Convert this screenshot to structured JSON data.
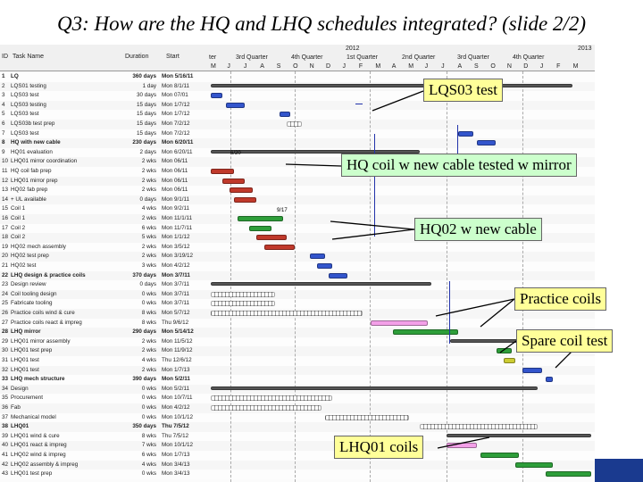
{
  "title": "Q3: How are the HQ and LHQ schedules integrated? (slide 2/2)",
  "colors": {
    "summary": "#555555",
    "blue": "#3355cc",
    "red": "#c0392b",
    "green": "#2e9e3a",
    "pink": "#f3a0e8",
    "yellow": "#cccc33",
    "callout_yellow": "#ffff99",
    "callout_green": "#ccffcc"
  },
  "header": {
    "id_label": "ID",
    "name_label": "Task Name",
    "dur_label": "Duration",
    "start_label": "Start",
    "years": [
      "2012",
      "2013"
    ],
    "quarters": [
      "ter",
      "3rd Quarter",
      "4th Quarter",
      "1st Quarter",
      "2nd Quarter",
      "3rd Quarter",
      "4th Quarter"
    ],
    "months": [
      "M",
      "J",
      "J",
      "A",
      "S",
      "O",
      "N",
      "D",
      "J",
      "F",
      "M",
      "A",
      "M",
      "J",
      "J",
      "A",
      "S",
      "O",
      "N",
      "D",
      "J",
      "F",
      "M"
    ]
  },
  "tasks": [
    {
      "id": "1",
      "name": "LQ",
      "dur": "360 days",
      "start": "Mon 5/16/11",
      "summary": true
    },
    {
      "id": "2",
      "name": "LQS01 testing",
      "dur": "1 day",
      "start": "Mon 8/1/11"
    },
    {
      "id": "3",
      "name": "LQS03 test",
      "dur": "30 days",
      "start": "Mon 07/01"
    },
    {
      "id": "4",
      "name": "LQS03 testing",
      "dur": "15 days",
      "start": "Mon 1/7/12"
    },
    {
      "id": "5",
      "name": "LQS03 test",
      "dur": "15 days",
      "start": "Mon 1/7/12"
    },
    {
      "id": "6",
      "name": "LQS03b test prep",
      "dur": "15 days",
      "start": "Mon 7/2/12"
    },
    {
      "id": "7",
      "name": "LQS03 test",
      "dur": "15 days",
      "start": "Mon 7/2/12"
    },
    {
      "id": "8",
      "name": "HQ with new cable",
      "dur": "230 days",
      "start": "Mon 6/20/11",
      "summary": true
    },
    {
      "id": "9",
      "name": "HQ01 evaluation",
      "dur": "2 days",
      "start": "Mon 6/20/11"
    },
    {
      "id": "10",
      "name": "LHQ01 mirror coordination",
      "dur": "2 wks",
      "start": "Mon 06/11"
    },
    {
      "id": "11",
      "name": "HQ coil fab prep",
      "dur": "2 wks",
      "start": "Mon 06/11"
    },
    {
      "id": "12",
      "name": "LHQ01 mirror prep",
      "dur": "2 wks",
      "start": "Mon 06/11"
    },
    {
      "id": "13",
      "name": "HQ02 fab prep",
      "dur": "2 wks",
      "start": "Mon 06/11"
    },
    {
      "id": "14",
      "name": "+ UL available",
      "dur": "0 days",
      "start": "Mon 9/1/11"
    },
    {
      "id": "15",
      "name": "Coil 1",
      "dur": "4 wks",
      "start": "Mon 9/2/11"
    },
    {
      "id": "16",
      "name": "Coil 1",
      "dur": "2 wks",
      "start": "Mon 11/1/11"
    },
    {
      "id": "17",
      "name": "Coil 2",
      "dur": "6 wks",
      "start": "Mon 11/7/11"
    },
    {
      "id": "18",
      "name": "Coil 2",
      "dur": "5 wks",
      "start": "Mon 1/1/12"
    },
    {
      "id": "19",
      "name": "HQ02 mech assembly",
      "dur": "2 wks",
      "start": "Mon 3/5/12"
    },
    {
      "id": "20",
      "name": "HQ02 test prep",
      "dur": "2 wks",
      "start": "Mon 3/19/12"
    },
    {
      "id": "21",
      "name": "HQ02 test",
      "dur": "3 wks",
      "start": "Mon 4/2/12"
    },
    {
      "id": "22",
      "name": "LHQ design & practice coils",
      "dur": "370 days",
      "start": "Mon 3/7/11",
      "summary": true
    },
    {
      "id": "23",
      "name": "Design review",
      "dur": "0 days",
      "start": "Mon 3/7/11"
    },
    {
      "id": "24",
      "name": "Coil tooling design",
      "dur": "0 wks",
      "start": "Mon 3/7/11"
    },
    {
      "id": "25",
      "name": "Fabricate tooling",
      "dur": "0 wks",
      "start": "Mon 3/7/11"
    },
    {
      "id": "26",
      "name": "Practice coils wind & cure",
      "dur": "8 wks",
      "start": "Mon 5/7/12"
    },
    {
      "id": "27",
      "name": "Practice coils react & impreg",
      "dur": "8 wks",
      "start": "Thu 9/6/12"
    },
    {
      "id": "28",
      "name": "LHQ mirror",
      "dur": "290 days",
      "start": "Mon 5/14/12",
      "summary": true
    },
    {
      "id": "29",
      "name": "LHQ01 mirror assembly",
      "dur": "2 wks",
      "start": "Mon 11/5/12"
    },
    {
      "id": "30",
      "name": "LHQ01 test prep",
      "dur": "2 wks",
      "start": "Mon 11/9/12"
    },
    {
      "id": "31",
      "name": "LHQ01 test",
      "dur": "4 wks",
      "start": "Thu 12/6/12"
    },
    {
      "id": "32",
      "name": "LHQ01 test",
      "dur": "2 wks",
      "start": "Mon 1/7/13"
    },
    {
      "id": "33",
      "name": "LHQ mech structure",
      "dur": "390 days",
      "start": "Mon 5/2/11",
      "summary": true
    },
    {
      "id": "34",
      "name": "Design",
      "dur": "0 wks",
      "start": "Mon 5/2/11"
    },
    {
      "id": "35",
      "name": "Procurement",
      "dur": "0 wks",
      "start": "Mon 10/7/11"
    },
    {
      "id": "36",
      "name": "Fab",
      "dur": "0 wks",
      "start": "Mon 4/2/12"
    },
    {
      "id": "37",
      "name": "Mechanical model",
      "dur": "0 wks",
      "start": "Mon 10/1/12"
    },
    {
      "id": "38",
      "name": "LHQ01",
      "dur": "350 days",
      "start": "Thu 7/5/12",
      "summary": true
    },
    {
      "id": "39",
      "name": "LHQ01 wind & cure",
      "dur": "8 wks",
      "start": "Thu 7/5/12"
    },
    {
      "id": "40",
      "name": "LHQ01 react & impreg",
      "dur": "7 wks",
      "start": "Mon 10/1/12"
    },
    {
      "id": "41",
      "name": "LHQ02 wind & impreg",
      "dur": "6 wks",
      "start": "Mon 1/7/13"
    },
    {
      "id": "42",
      "name": "LHQ02 assembly & impreg",
      "dur": "4 wks",
      "start": "Mon 3/4/13"
    },
    {
      "id": "43",
      "name": "LHQ01 test prep",
      "dur": "0 wks",
      "start": "Mon 3/4/13"
    }
  ],
  "milestones": [
    "6/20",
    "9/17"
  ],
  "callouts": [
    {
      "text": "LQS03 test",
      "style": "yellow"
    },
    {
      "text": "HQ coil w new cable tested w mirror",
      "style": "green"
    },
    {
      "text": "HQ02 w new cable",
      "style": "green"
    },
    {
      "text": "Practice coils",
      "style": "yellow"
    },
    {
      "text": "Spare coil test",
      "style": "yellow"
    },
    {
      "text": "LHQ01 coils",
      "style": "yellow"
    }
  ],
  "gantt_bars": [
    {
      "row": 1,
      "start": 0.0,
      "end": 0.95,
      "kind": "summary"
    },
    {
      "row": 2,
      "start": 0.0,
      "end": 0.03,
      "kind": "blue"
    },
    {
      "row": 3,
      "start": 0.04,
      "end": 0.09,
      "kind": "blue"
    },
    {
      "row": 4,
      "start": 0.18,
      "end": 0.21,
      "kind": "blue"
    },
    {
      "row": 5,
      "start": 0.2,
      "end": 0.24,
      "kind": "hatched"
    },
    {
      "row": 6,
      "start": 0.65,
      "end": 0.69,
      "kind": "blue"
    },
    {
      "row": 7,
      "start": 0.7,
      "end": 0.75,
      "kind": "blue"
    },
    {
      "row": 8,
      "start": 0.0,
      "end": 0.55,
      "kind": "summary"
    },
    {
      "row": 10,
      "start": 0.0,
      "end": 0.06,
      "kind": "red"
    },
    {
      "row": 11,
      "start": 0.03,
      "end": 0.09,
      "kind": "red"
    },
    {
      "row": 12,
      "start": 0.05,
      "end": 0.11,
      "kind": "red"
    },
    {
      "row": 13,
      "start": 0.06,
      "end": 0.12,
      "kind": "red"
    },
    {
      "row": 15,
      "start": 0.07,
      "end": 0.19,
      "kind": "green"
    },
    {
      "row": 16,
      "start": 0.1,
      "end": 0.16,
      "kind": "green"
    },
    {
      "row": 17,
      "start": 0.12,
      "end": 0.2,
      "kind": "red"
    },
    {
      "row": 18,
      "start": 0.14,
      "end": 0.22,
      "kind": "red"
    },
    {
      "row": 19,
      "start": 0.26,
      "end": 0.3,
      "kind": "blue"
    },
    {
      "row": 20,
      "start": 0.28,
      "end": 0.32,
      "kind": "blue"
    },
    {
      "row": 21,
      "start": 0.31,
      "end": 0.36,
      "kind": "blue"
    },
    {
      "row": 22,
      "start": 0.0,
      "end": 0.58,
      "kind": "summary"
    },
    {
      "row": 23,
      "start": 0.0,
      "end": 0.17,
      "kind": "hatched"
    },
    {
      "row": 24,
      "start": 0.0,
      "end": 0.17,
      "kind": "hatched"
    },
    {
      "row": 25,
      "start": 0.0,
      "end": 0.4,
      "kind": "hatched"
    },
    {
      "row": 26,
      "start": 0.42,
      "end": 0.57,
      "kind": "pink"
    },
    {
      "row": 27,
      "start": 0.48,
      "end": 0.65,
      "kind": "green"
    },
    {
      "row": 28,
      "start": 0.63,
      "end": 0.95,
      "kind": "summary"
    },
    {
      "row": 29,
      "start": 0.75,
      "end": 0.79,
      "kind": "green"
    },
    {
      "row": 30,
      "start": 0.77,
      "end": 0.8,
      "kind": "yellow"
    },
    {
      "row": 31,
      "start": 0.82,
      "end": 0.87,
      "kind": "blue"
    },
    {
      "row": 32,
      "start": 0.88,
      "end": 0.9,
      "kind": "blue"
    },
    {
      "row": 33,
      "start": 0.0,
      "end": 0.86,
      "kind": "summary"
    },
    {
      "row": 34,
      "start": 0.0,
      "end": 0.32,
      "kind": "hatched"
    },
    {
      "row": 35,
      "start": 0.0,
      "end": 0.29,
      "kind": "hatched"
    },
    {
      "row": 36,
      "start": 0.3,
      "end": 0.52,
      "kind": "hatched"
    },
    {
      "row": 37,
      "start": 0.55,
      "end": 0.86,
      "kind": "hatched"
    },
    {
      "row": 38,
      "start": 0.62,
      "end": 1.0,
      "kind": "summary"
    },
    {
      "row": 39,
      "start": 0.62,
      "end": 0.7,
      "kind": "pink"
    },
    {
      "row": 40,
      "start": 0.71,
      "end": 0.81,
      "kind": "green"
    },
    {
      "row": 41,
      "start": 0.8,
      "end": 0.9,
      "kind": "green"
    },
    {
      "row": 42,
      "start": 0.88,
      "end": 1.0,
      "kind": "green"
    }
  ]
}
